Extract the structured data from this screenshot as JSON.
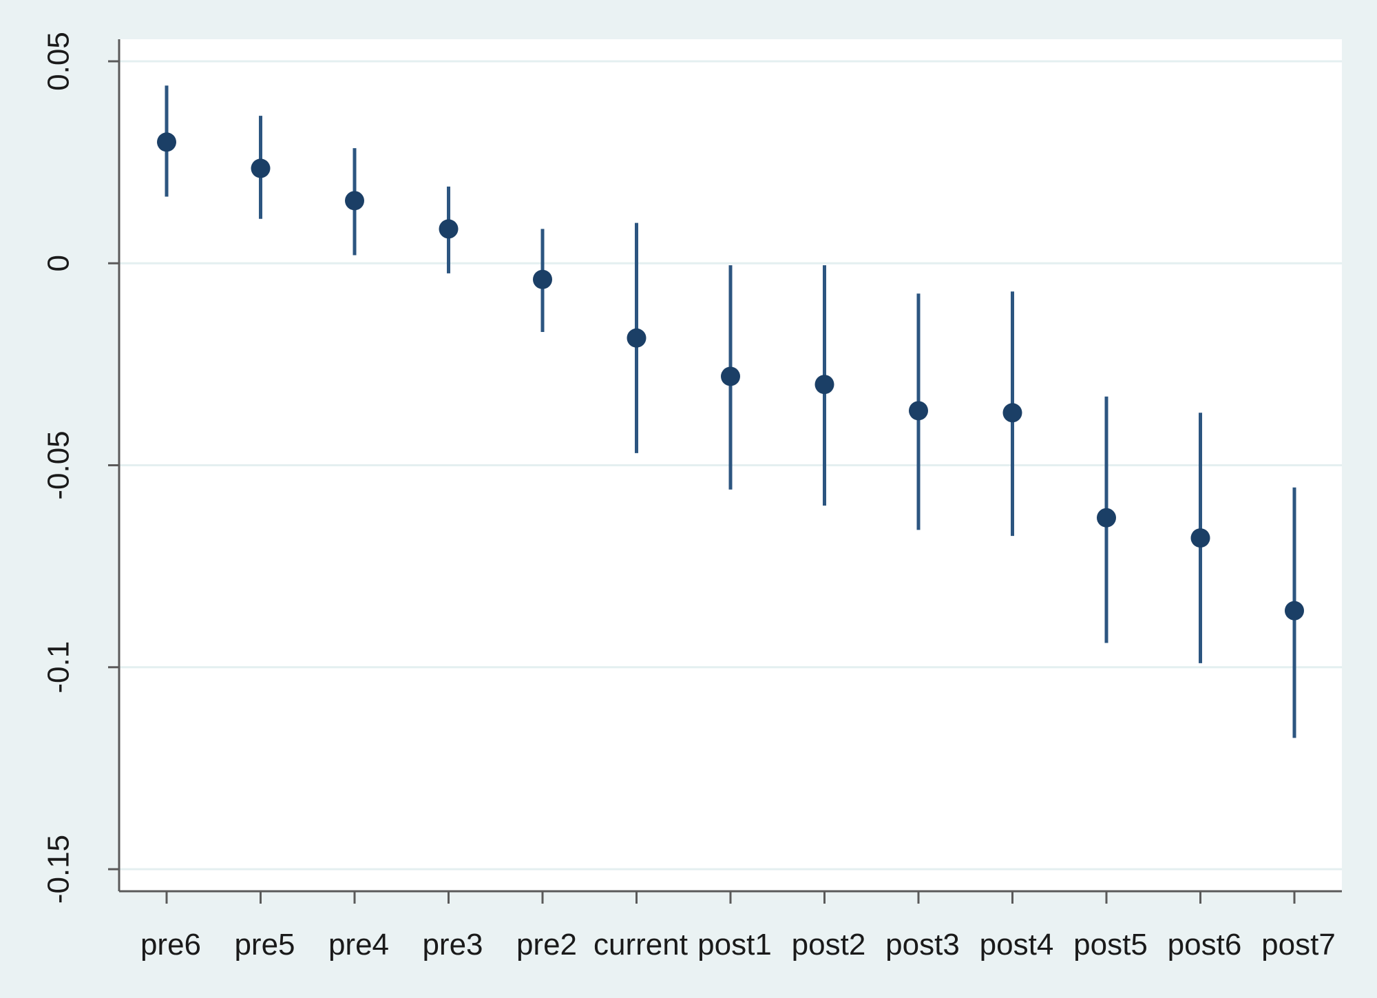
{
  "chart_data": {
    "type": "scatter",
    "subtype": "coefficient-plot-with-confidence-intervals",
    "title": "",
    "xlabel": "",
    "ylabel": "",
    "categories": [
      "pre6",
      "pre5",
      "pre4",
      "pre3",
      "pre2",
      "current",
      "post1",
      "post2",
      "post3",
      "post4",
      "post5",
      "post6",
      "post7"
    ],
    "estimates": [
      0.03,
      0.0235,
      0.0155,
      0.0085,
      -0.004,
      -0.0185,
      -0.028,
      -0.03,
      -0.0365,
      -0.037,
      -0.063,
      -0.068,
      -0.086
    ],
    "ci_lower": [
      0.0165,
      0.011,
      0.002,
      -0.0025,
      -0.017,
      -0.047,
      -0.056,
      -0.06,
      -0.066,
      -0.0675,
      -0.094,
      -0.099,
      -0.1175
    ],
    "ci_upper": [
      0.044,
      0.0365,
      0.0285,
      0.019,
      0.0085,
      0.01,
      -0.0005,
      -0.0005,
      -0.0075,
      -0.007,
      -0.033,
      -0.037,
      -0.0555
    ],
    "yticks": [
      0.05,
      0,
      -0.05,
      -0.1,
      -0.15
    ],
    "ytick_labels": [
      "0.05",
      "0",
      "-0.05",
      "-0.1",
      "-0.15"
    ],
    "ylim": [
      -0.155,
      0.055
    ],
    "grid": true,
    "colors": {
      "marker": "#1b3f66",
      "ci_line": "#2c5580",
      "gridline": "#e4eff0",
      "axis": "#5a5a5a",
      "background": "#eaf2f3",
      "plot_background": "#ffffff"
    }
  }
}
